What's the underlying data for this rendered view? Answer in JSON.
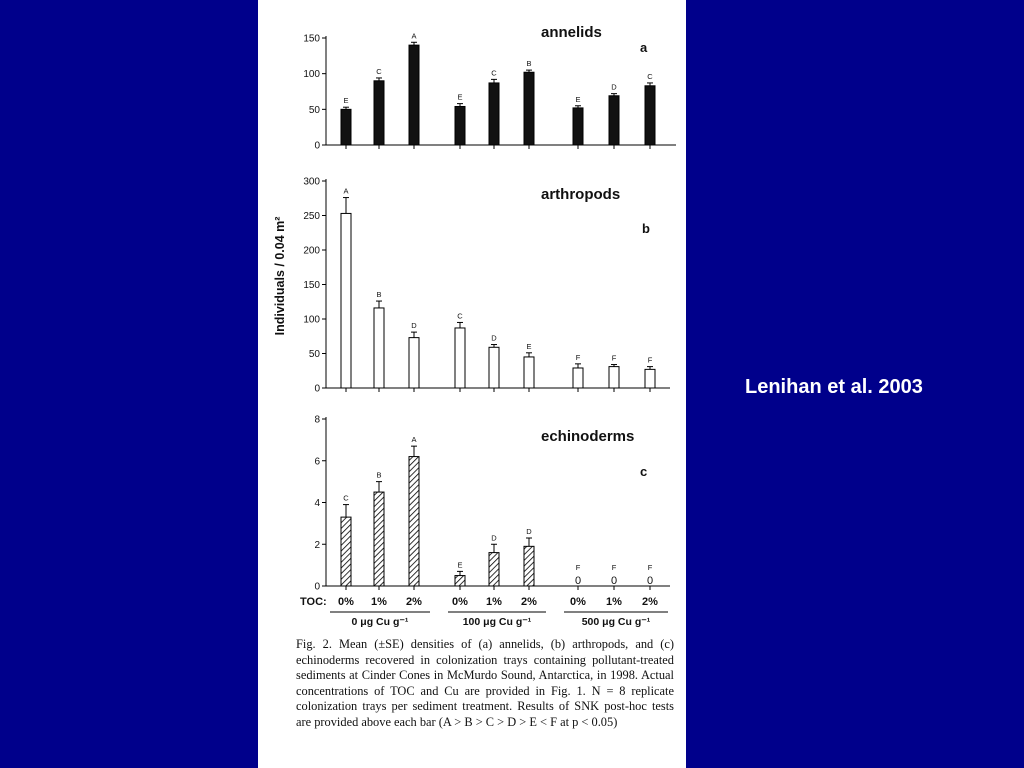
{
  "slide": {
    "background": "#00008b",
    "citation": "Lenihan et al. 2003"
  },
  "figure": {
    "ylabel": "Individuals / 0.04 m²",
    "toc_label": "TOC:",
    "toc_levels": [
      "0%",
      "1%",
      "2%",
      "0%",
      "1%",
      "2%",
      "0%",
      "1%",
      "2%"
    ],
    "cu_groups": [
      "0 μg Cu g⁻¹",
      "100 μg Cu g⁻¹",
      "500 μg Cu g⁻¹"
    ],
    "caption": "Fig. 2. Mean (±SE) densities of (a) annelids, (b) arthropods, and (c) echinoderms recovered in colonization trays containing pollutant-treated sediments at Cinder Cones in McMurdo Sound, Antarctica, in 1998. Actual concentrations of TOC and Cu are provided in Fig. 1. N = 8 replicate colonization trays per sediment treatment. Results of SNK post-hoc tests are provided above each bar (A > B > C > D > E < F at p < 0.05)"
  },
  "chart_data": [
    {
      "type": "bar",
      "title": "annelids",
      "panel_letter": "a",
      "fill": "solid",
      "ylim": [
        0,
        150
      ],
      "yticks": [
        0,
        50,
        100,
        150
      ],
      "categories": [
        "0%",
        "1%",
        "2%",
        "0%",
        "1%",
        "2%",
        "0%",
        "1%",
        "2%"
      ],
      "values": [
        50,
        90,
        140,
        54,
        87,
        102,
        52,
        69,
        83
      ],
      "errors": [
        3,
        4,
        4,
        4,
        5,
        3,
        3,
        3,
        4
      ],
      "sig_labels": [
        "E",
        "C",
        "A",
        "E",
        "C",
        "B",
        "E",
        "D",
        "C"
      ]
    },
    {
      "type": "bar",
      "title": "arthropods",
      "panel_letter": "b",
      "fill": "open",
      "ylim": [
        0,
        300
      ],
      "yticks": [
        0,
        50,
        100,
        150,
        200,
        250,
        300
      ],
      "categories": [
        "0%",
        "1%",
        "2%",
        "0%",
        "1%",
        "2%",
        "0%",
        "1%",
        "2%"
      ],
      "values": [
        253,
        116,
        73,
        87,
        59,
        45,
        29,
        31,
        27
      ],
      "errors": [
        23,
        10,
        8,
        8,
        4,
        6,
        6,
        3,
        4
      ],
      "sig_labels": [
        "A",
        "B",
        "D",
        "C",
        "D",
        "E",
        "F",
        "F",
        "F"
      ]
    },
    {
      "type": "bar",
      "title": "echinoderms",
      "panel_letter": "c",
      "fill": "hatched",
      "ylim": [
        0,
        8
      ],
      "yticks": [
        0,
        2,
        4,
        6,
        8
      ],
      "categories": [
        "0%",
        "1%",
        "2%",
        "0%",
        "1%",
        "2%",
        "0%",
        "1%",
        "2%"
      ],
      "values": [
        3.3,
        4.5,
        6.2,
        0.5,
        1.6,
        1.9,
        0,
        0,
        0
      ],
      "errors": [
        0.6,
        0.5,
        0.5,
        0.2,
        0.4,
        0.4,
        0,
        0,
        0
      ],
      "zero_marker": "0",
      "sig_labels": [
        "C",
        "B",
        "A",
        "E",
        "D",
        "D",
        "F",
        "F",
        "F"
      ]
    }
  ]
}
